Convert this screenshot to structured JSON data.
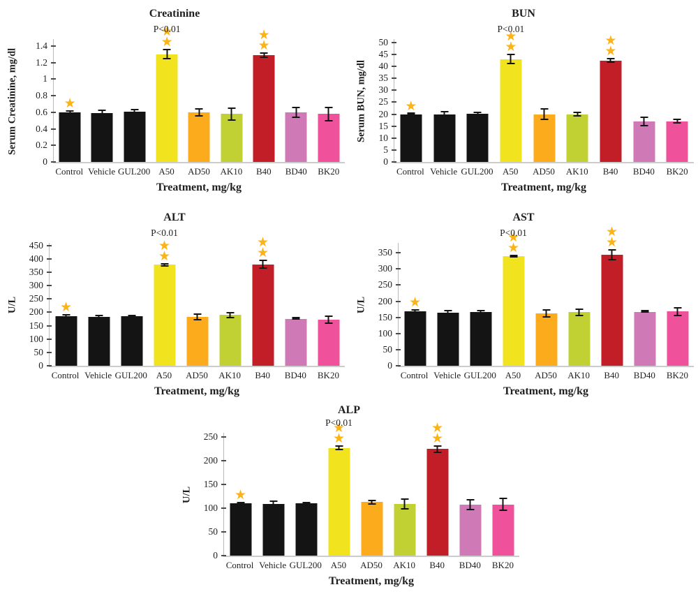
{
  "figure": {
    "background": "#ffffff",
    "text_color": "#1f1f1f",
    "axis_line_color": "#c9c9c9",
    "error_bar_color": "#141414",
    "star_glyph": "★",
    "star_color": "#fcb316",
    "bar_colors": [
      "#141414",
      "#141414",
      "#141414",
      "#f1e41e",
      "#fbab1c",
      "#c1d134",
      "#c21e27",
      "#d079b7",
      "#f0519b"
    ]
  },
  "chart_data": [
    {
      "id": "creatinine",
      "type": "bar",
      "title": "Creatinine",
      "ylabel": "Serum Creatinine, mg/dl",
      "xlabel": "Treatment, mg/kg",
      "p_annotation": {
        "text": "P<0.01",
        "category": "A50",
        "category_index": 3
      },
      "categories": [
        "Control",
        "Vehicle",
        "GUL200",
        "A50",
        "AD50",
        "AK10",
        "B40",
        "BD40",
        "BK20"
      ],
      "values": [
        0.6,
        0.59,
        0.61,
        1.3,
        0.6,
        0.58,
        1.29,
        0.6,
        0.58
      ],
      "errors": [
        0.02,
        0.04,
        0.03,
        0.065,
        0.05,
        0.08,
        0.035,
        0.07,
        0.09
      ],
      "stars": [
        1,
        0,
        0,
        2,
        0,
        0,
        2,
        0,
        0
      ],
      "yticks": [
        0,
        0.2,
        0.4,
        0.6,
        0.8,
        1,
        1.2,
        1.4
      ],
      "ytick_labels": [
        "0",
        "0.2",
        "0.4",
        "0.6",
        "0.8",
        "1",
        "1.2",
        "1.4"
      ],
      "ylim": [
        0,
        1.5
      ],
      "grid": false,
      "legend": false
    },
    {
      "id": "bun",
      "type": "bar",
      "title": "BUN",
      "ylabel": "Serum BUN, mg/dl",
      "xlabel": "Treatment, mg/kg",
      "p_annotation": {
        "text": "P<0.01",
        "category": "A50",
        "category_index": 3
      },
      "categories": [
        "Control",
        "Vehicle",
        "GUL200",
        "A50",
        "AD50",
        "AK10",
        "B40",
        "BD40",
        "BK20"
      ],
      "values": [
        20,
        20,
        20.3,
        43,
        20,
        20,
        42.5,
        17,
        17
      ],
      "errors": [
        0.5,
        1.3,
        0.8,
        2.2,
        2.5,
        1,
        1,
        2,
        1
      ],
      "stars": [
        1,
        0,
        0,
        2,
        0,
        0,
        2,
        0,
        0
      ],
      "yticks": [
        0,
        5,
        10,
        15,
        20,
        25,
        30,
        35,
        40,
        45,
        50
      ],
      "ytick_labels": [
        "0",
        "5",
        "10",
        "15",
        "20",
        "25",
        "30",
        "35",
        "40",
        "45",
        "50"
      ],
      "ylim": [
        0,
        52
      ],
      "grid": false,
      "legend": false
    },
    {
      "id": "alt",
      "type": "bar",
      "title": "ALT",
      "ylabel": "U/L",
      "xlabel": "Treatment, mg/kg",
      "p_annotation": {
        "text": "P<0.01",
        "category": "A50",
        "category_index": 3
      },
      "categories": [
        "Control",
        "Vehicle",
        "GUL200",
        "A50",
        "AD50",
        "AK10",
        "B40",
        "BD40",
        "BK20"
      ],
      "values": [
        185,
        183,
        185,
        378,
        183,
        190,
        380,
        176,
        173
      ],
      "errors": [
        8,
        7,
        6,
        6,
        14,
        12,
        18,
        3,
        15
      ],
      "stars": [
        1,
        0,
        0,
        2,
        0,
        0,
        2,
        0,
        0
      ],
      "yticks": [
        0,
        50,
        100,
        150,
        200,
        250,
        300,
        350,
        400,
        450
      ],
      "ytick_labels": [
        "0",
        "50",
        "100",
        "150",
        "200",
        "250",
        "300",
        "350",
        "400",
        "450"
      ],
      "ylim": [
        0,
        465
      ],
      "grid": false,
      "legend": false
    },
    {
      "id": "ast",
      "type": "bar",
      "title": "AST",
      "ylabel": "U/L",
      "xlabel": "Treatment, mg/kg",
      "p_annotation": {
        "text": "P<0.01",
        "category": "A50",
        "category_index": 3
      },
      "categories": [
        "Control",
        "Vehicle",
        "GUL200",
        "A50",
        "AD50",
        "AK10",
        "B40",
        "BD40",
        "BK20"
      ],
      "values": [
        168,
        165,
        166,
        340,
        163,
        166,
        344,
        166,
        168
      ],
      "errors": [
        7,
        8,
        6,
        5,
        13,
        12,
        18,
        2,
        14
      ],
      "stars": [
        1,
        0,
        0,
        2,
        0,
        0,
        2,
        0,
        0
      ],
      "yticks": [
        0,
        50,
        100,
        150,
        200,
        250,
        300,
        350
      ],
      "ytick_labels": [
        "0",
        "50",
        "100",
        "150",
        "200",
        "250",
        "300",
        "350"
      ],
      "ylim": [
        0,
        385
      ],
      "grid": false,
      "legend": false
    },
    {
      "id": "alp",
      "type": "bar",
      "title": "ALP",
      "ylabel": "U/L",
      "xlabel": "Treatment, mg/kg",
      "p_annotation": {
        "text": "P<0.01",
        "category": "A50",
        "category_index": 3
      },
      "categories": [
        "Control",
        "Vehicle",
        "GUL200",
        "A50",
        "AD50",
        "AK10",
        "B40",
        "BD40",
        "BK20"
      ],
      "values": [
        111,
        109,
        110,
        227,
        113,
        109,
        225,
        107,
        108
      ],
      "errors": [
        3,
        8,
        3,
        5,
        5,
        12,
        8,
        12,
        14
      ],
      "stars": [
        1,
        0,
        0,
        2,
        0,
        0,
        2,
        0,
        0
      ],
      "yticks": [
        0,
        50,
        100,
        150,
        200,
        250
      ],
      "ytick_labels": [
        "0",
        "50",
        "100",
        "150",
        "200",
        "250"
      ],
      "ylim": [
        0,
        262
      ],
      "grid": false,
      "legend": false
    }
  ]
}
